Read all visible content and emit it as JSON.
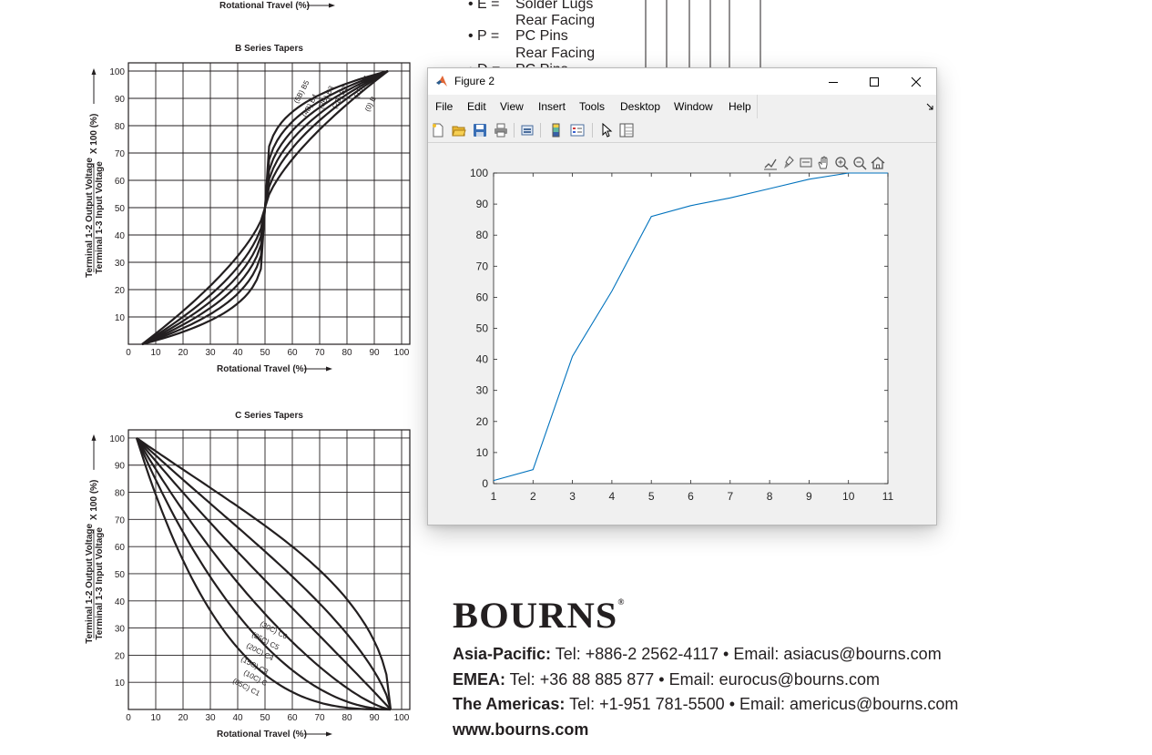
{
  "document": {
    "top_axis_label": "Rotational Travel (%)",
    "options": [
      {
        "key": "• E =",
        "value": "Solder Lugs"
      },
      {
        "key": "",
        "value": "Rear Facing"
      },
      {
        "key": "• P =",
        "value": "PC Pins"
      },
      {
        "key": "",
        "value": "Rear Facing"
      },
      {
        "key": "• D =",
        "value": "PC Pins"
      }
    ],
    "chart_b": {
      "title": "B Series Tapers",
      "ylabel_top": "Terminal 1-2 Output Voltage",
      "ylabel_bottom": "Terminal 1-3 Input Voltage",
      "ylabel_suffix": "X 100 (%)",
      "xlabel": "Rotational Travel (%)",
      "x_ticks": [
        "0",
        "10",
        "20",
        "30",
        "40",
        "50",
        "60",
        "70",
        "80",
        "90",
        "100"
      ],
      "y_ticks": [
        "10",
        "20",
        "30",
        "40",
        "50",
        "60",
        "70",
        "80",
        "90",
        "100"
      ],
      "curve_labels": [
        "(5B) B5",
        "(4B) B4",
        "(3B) B3",
        "(2B) B2",
        "(1B) B1",
        "(0) B"
      ]
    },
    "chart_c": {
      "title": "C Series Tapers",
      "ylabel_top": "Terminal 1-2 Output Voltage",
      "ylabel_bottom": "Terminal 1-3 Input Voltage",
      "ylabel_suffix": "X 100 (%)",
      "xlabel": "Rotational Travel (%)",
      "x_ticks": [
        "0",
        "10",
        "20",
        "30",
        "40",
        "50",
        "60",
        "70",
        "80",
        "90",
        "100"
      ],
      "y_ticks": [
        "10",
        "20",
        "30",
        "40",
        "50",
        "60",
        "70",
        "80",
        "90",
        "100"
      ],
      "curve_labels": [
        "(30C) C6",
        "(25C) C5",
        "(20C) C4",
        "(15C) C3",
        "(10C) C",
        "(05C) C1"
      ]
    },
    "brand": "BOURNS",
    "brand_mark": "®",
    "contacts": [
      {
        "region": "Asia-Pacific:",
        "details": " Tel: +886-2 2562-4117  •  Email: asiacus@bourns.com"
      },
      {
        "region": "EMEA:",
        "details": " Tel: +36 88 885 877  •  Email: eurocus@bourns.com"
      },
      {
        "region": "The Americas:",
        "details": " Tel: +1-951 781-5500  •  Email: americus@bourns.com"
      }
    ],
    "website": "www.bourns.com"
  },
  "window": {
    "title": "Figure 2",
    "icons": {
      "minimize": "minimize-icon",
      "maximize": "maximize-icon",
      "close": "close-icon"
    },
    "menu": [
      "File",
      "Edit",
      "View",
      "Insert",
      "Tools",
      "Desktop",
      "Window",
      "Help"
    ],
    "toolbar_icons": [
      "new-figure-icon",
      "open-file-icon",
      "save-icon",
      "print-icon",
      "link-plot-icon",
      "insert-colorbar-icon",
      "insert-legend-icon",
      "edit-plot-arrow-icon",
      "property-inspector-icon"
    ],
    "axes_toolbar_icons": [
      "export-icon",
      "brush-icon",
      "data-tips-icon",
      "pan-icon",
      "zoom-in-icon",
      "zoom-out-icon",
      "restore-view-icon"
    ]
  },
  "chart_data": {
    "type": "line",
    "x": [
      1,
      2,
      3,
      4,
      5,
      6,
      7,
      8,
      9,
      10,
      11
    ],
    "series": [
      {
        "values": [
          1,
          4.5,
          41,
          62,
          86,
          89.5,
          92,
          95,
          98,
          100,
          100
        ]
      }
    ],
    "xlim": [
      1,
      11
    ],
    "ylim": [
      0,
      100
    ],
    "x_ticks": [
      "1",
      "2",
      "3",
      "4",
      "5",
      "6",
      "7",
      "8",
      "9",
      "10",
      "11"
    ],
    "y_ticks": [
      "0",
      "10",
      "20",
      "30",
      "40",
      "50",
      "60",
      "70",
      "80",
      "90",
      "100"
    ],
    "line_color": "#0072bd",
    "grid": false
  }
}
